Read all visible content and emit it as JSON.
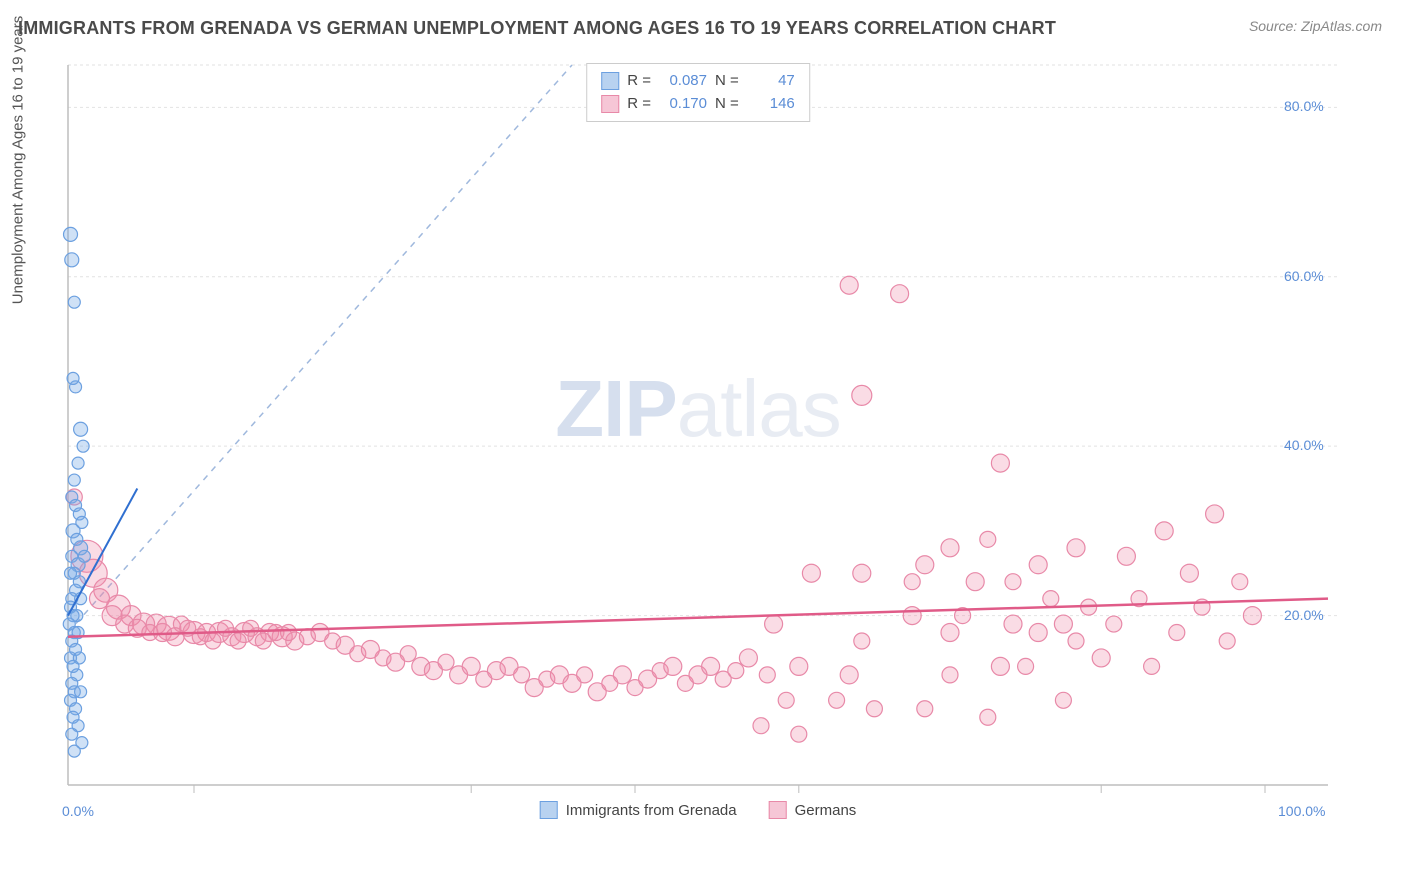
{
  "title": "IMMIGRANTS FROM GRENADA VS GERMAN UNEMPLOYMENT AMONG AGES 16 TO 19 YEARS CORRELATION CHART",
  "source": "Source: ZipAtlas.com",
  "watermark_a": "ZIP",
  "watermark_b": "atlas",
  "chart": {
    "type": "scatter",
    "xlim": [
      0,
      100
    ],
    "ylim": [
      0,
      85
    ],
    "x_ticks_minor": [
      10,
      32,
      45,
      58,
      82,
      95
    ],
    "x_tick_labels": {
      "0": "0.0%",
      "100": "100.0%"
    },
    "y_ticks": [
      20,
      40,
      60,
      80
    ],
    "y_tick_labels": {
      "20": "20.0%",
      "40": "40.0%",
      "60": "60.0%",
      "80": "80.0%"
    },
    "ylabel": "Unemployment Among Ages 16 to 19 years",
    "background_color": "#ffffff",
    "grid_color": "#e2e2e2",
    "axis_line_color": "#bdbdbd",
    "tick_label_color": "#5b8dd6",
    "diagonal_line_color": "#9fb8dd",
    "series": [
      {
        "name": "Immigrants from Grenada",
        "legend_label": "Immigrants from Grenada",
        "color_fill": "rgba(118,168,228,0.35)",
        "color_stroke": "#6ca0e0",
        "swatch_fill": "#b8d2f0",
        "swatch_stroke": "#6ca0e0",
        "R": "0.087",
        "N": "47",
        "trend": {
          "x1": 0,
          "y1": 20,
          "x2": 5.5,
          "y2": 35,
          "color": "#2f6fd0",
          "width": 2
        },
        "points": [
          {
            "x": 0.2,
            "y": 65,
            "r": 7
          },
          {
            "x": 0.3,
            "y": 62,
            "r": 7
          },
          {
            "x": 0.5,
            "y": 57,
            "r": 6
          },
          {
            "x": 0.6,
            "y": 47,
            "r": 6
          },
          {
            "x": 0.4,
            "y": 48,
            "r": 6
          },
          {
            "x": 1.0,
            "y": 42,
            "r": 7
          },
          {
            "x": 1.2,
            "y": 40,
            "r": 6
          },
          {
            "x": 0.8,
            "y": 38,
            "r": 6
          },
          {
            "x": 0.5,
            "y": 36,
            "r": 6
          },
          {
            "x": 0.3,
            "y": 34,
            "r": 6
          },
          {
            "x": 0.6,
            "y": 33,
            "r": 6
          },
          {
            "x": 0.9,
            "y": 32,
            "r": 6
          },
          {
            "x": 1.1,
            "y": 31,
            "r": 6
          },
          {
            "x": 0.4,
            "y": 30,
            "r": 7
          },
          {
            "x": 0.7,
            "y": 29,
            "r": 6
          },
          {
            "x": 1.0,
            "y": 28,
            "r": 7
          },
          {
            "x": 0.3,
            "y": 27,
            "r": 6
          },
          {
            "x": 0.8,
            "y": 26,
            "r": 7
          },
          {
            "x": 1.3,
            "y": 27,
            "r": 6
          },
          {
            "x": 0.5,
            "y": 25,
            "r": 6
          },
          {
            "x": 0.2,
            "y": 25,
            "r": 6
          },
          {
            "x": 0.9,
            "y": 24,
            "r": 6
          },
          {
            "x": 0.6,
            "y": 23,
            "r": 6
          },
          {
            "x": 0.3,
            "y": 22,
            "r": 6
          },
          {
            "x": 1.0,
            "y": 22,
            "r": 6
          },
          {
            "x": 0.2,
            "y": 21,
            "r": 6
          },
          {
            "x": 0.7,
            "y": 20,
            "r": 6
          },
          {
            "x": 0.4,
            "y": 20,
            "r": 6
          },
          {
            "x": 0.1,
            "y": 19,
            "r": 6
          },
          {
            "x": 0.5,
            "y": 18,
            "r": 6
          },
          {
            "x": 0.8,
            "y": 18,
            "r": 6
          },
          {
            "x": 0.3,
            "y": 17,
            "r": 6
          },
          {
            "x": 0.6,
            "y": 16,
            "r": 6
          },
          {
            "x": 0.2,
            "y": 15,
            "r": 6
          },
          {
            "x": 0.9,
            "y": 15,
            "r": 6
          },
          {
            "x": 0.4,
            "y": 14,
            "r": 6
          },
          {
            "x": 0.7,
            "y": 13,
            "r": 6
          },
          {
            "x": 0.3,
            "y": 12,
            "r": 6
          },
          {
            "x": 0.5,
            "y": 11,
            "r": 6
          },
          {
            "x": 1.0,
            "y": 11,
            "r": 6
          },
          {
            "x": 0.2,
            "y": 10,
            "r": 6
          },
          {
            "x": 0.6,
            "y": 9,
            "r": 6
          },
          {
            "x": 0.4,
            "y": 8,
            "r": 6
          },
          {
            "x": 0.8,
            "y": 7,
            "r": 6
          },
          {
            "x": 0.3,
            "y": 6,
            "r": 6
          },
          {
            "x": 1.1,
            "y": 5,
            "r": 6
          },
          {
            "x": 0.5,
            "y": 4,
            "r": 6
          }
        ]
      },
      {
        "name": "Germans",
        "legend_label": "Germans",
        "color_fill": "rgba(240,140,170,0.30)",
        "color_stroke": "#e889a8",
        "swatch_fill": "#f6c6d6",
        "swatch_stroke": "#e889a8",
        "R": "0.170",
        "N": "146",
        "trend": {
          "x1": 0,
          "y1": 17.5,
          "x2": 100,
          "y2": 22,
          "color": "#e05b88",
          "width": 2.5
        },
        "points": [
          {
            "x": 0.5,
            "y": 34,
            "r": 8
          },
          {
            "x": 1.5,
            "y": 27,
            "r": 16
          },
          {
            "x": 2,
            "y": 25,
            "r": 14
          },
          {
            "x": 3,
            "y": 23,
            "r": 12
          },
          {
            "x": 2.5,
            "y": 22,
            "r": 10
          },
          {
            "x": 4,
            "y": 21,
            "r": 12
          },
          {
            "x": 3.5,
            "y": 20,
            "r": 10
          },
          {
            "x": 5,
            "y": 20,
            "r": 10
          },
          {
            "x": 4.5,
            "y": 19,
            "r": 9
          },
          {
            "x": 6,
            "y": 19,
            "r": 11
          },
          {
            "x": 5.5,
            "y": 18.5,
            "r": 9
          },
          {
            "x": 7,
            "y": 19,
            "r": 10
          },
          {
            "x": 6.5,
            "y": 18,
            "r": 8
          },
          {
            "x": 8,
            "y": 18.5,
            "r": 12
          },
          {
            "x": 7.5,
            "y": 18,
            "r": 9
          },
          {
            "x": 9,
            "y": 19,
            "r": 8
          },
          {
            "x": 8.5,
            "y": 17.5,
            "r": 9
          },
          {
            "x": 10,
            "y": 18,
            "r": 11
          },
          {
            "x": 9.5,
            "y": 18.5,
            "r": 8
          },
          {
            "x": 11,
            "y": 18,
            "r": 9
          },
          {
            "x": 10.5,
            "y": 17.5,
            "r": 8
          },
          {
            "x": 12,
            "y": 18,
            "r": 10
          },
          {
            "x": 11.5,
            "y": 17,
            "r": 8
          },
          {
            "x": 13,
            "y": 17.5,
            "r": 9
          },
          {
            "x": 12.5,
            "y": 18.5,
            "r": 8
          },
          {
            "x": 14,
            "y": 18,
            "r": 10
          },
          {
            "x": 13.5,
            "y": 17,
            "r": 8
          },
          {
            "x": 15,
            "y": 17.5,
            "r": 9
          },
          {
            "x": 14.5,
            "y": 18.5,
            "r": 8
          },
          {
            "x": 16,
            "y": 18,
            "r": 9
          },
          {
            "x": 15.5,
            "y": 17,
            "r": 8
          },
          {
            "x": 17,
            "y": 17.5,
            "r": 10
          },
          {
            "x": 16.5,
            "y": 18,
            "r": 8
          },
          {
            "x": 18,
            "y": 17,
            "r": 9
          },
          {
            "x": 17.5,
            "y": 18,
            "r": 8
          },
          {
            "x": 19,
            "y": 17.5,
            "r": 8
          },
          {
            "x": 20,
            "y": 18,
            "r": 9
          },
          {
            "x": 21,
            "y": 17,
            "r": 8
          },
          {
            "x": 22,
            "y": 16.5,
            "r": 9
          },
          {
            "x": 23,
            "y": 15.5,
            "r": 8
          },
          {
            "x": 24,
            "y": 16,
            "r": 9
          },
          {
            "x": 25,
            "y": 15,
            "r": 8
          },
          {
            "x": 26,
            "y": 14.5,
            "r": 9
          },
          {
            "x": 27,
            "y": 15.5,
            "r": 8
          },
          {
            "x": 28,
            "y": 14,
            "r": 9
          },
          {
            "x": 29,
            "y": 13.5,
            "r": 9
          },
          {
            "x": 30,
            "y": 14.5,
            "r": 8
          },
          {
            "x": 31,
            "y": 13,
            "r": 9
          },
          {
            "x": 32,
            "y": 14,
            "r": 9
          },
          {
            "x": 33,
            "y": 12.5,
            "r": 8
          },
          {
            "x": 34,
            "y": 13.5,
            "r": 9
          },
          {
            "x": 35,
            "y": 14,
            "r": 9
          },
          {
            "x": 36,
            "y": 13,
            "r": 8
          },
          {
            "x": 37,
            "y": 11.5,
            "r": 9
          },
          {
            "x": 38,
            "y": 12.5,
            "r": 8
          },
          {
            "x": 39,
            "y": 13,
            "r": 9
          },
          {
            "x": 40,
            "y": 12,
            "r": 9
          },
          {
            "x": 41,
            "y": 13,
            "r": 8
          },
          {
            "x": 42,
            "y": 11,
            "r": 9
          },
          {
            "x": 43,
            "y": 12,
            "r": 8
          },
          {
            "x": 44,
            "y": 13,
            "r": 9
          },
          {
            "x": 45,
            "y": 11.5,
            "r": 8
          },
          {
            "x": 46,
            "y": 12.5,
            "r": 9
          },
          {
            "x": 47,
            "y": 13.5,
            "r": 8
          },
          {
            "x": 48,
            "y": 14,
            "r": 9
          },
          {
            "x": 49,
            "y": 12,
            "r": 8
          },
          {
            "x": 50,
            "y": 13,
            "r": 9
          },
          {
            "x": 51,
            "y": 14,
            "r": 9
          },
          {
            "x": 52,
            "y": 12.5,
            "r": 8
          },
          {
            "x": 53,
            "y": 13.5,
            "r": 8
          },
          {
            "x": 54,
            "y": 15,
            "r": 9
          },
          {
            "x": 55,
            "y": 7,
            "r": 8
          },
          {
            "x": 55.5,
            "y": 13,
            "r": 8
          },
          {
            "x": 56,
            "y": 19,
            "r": 9
          },
          {
            "x": 57,
            "y": 10,
            "r": 8
          },
          {
            "x": 58,
            "y": 6,
            "r": 8
          },
          {
            "x": 58,
            "y": 14,
            "r": 9
          },
          {
            "x": 59,
            "y": 25,
            "r": 9
          },
          {
            "x": 61,
            "y": 10,
            "r": 8
          },
          {
            "x": 62,
            "y": 13,
            "r": 9
          },
          {
            "x": 62,
            "y": 59,
            "r": 9
          },
          {
            "x": 63,
            "y": 17,
            "r": 8
          },
          {
            "x": 63,
            "y": 25,
            "r": 9
          },
          {
            "x": 63,
            "y": 46,
            "r": 10
          },
          {
            "x": 64,
            "y": 9,
            "r": 8
          },
          {
            "x": 66,
            "y": 58,
            "r": 9
          },
          {
            "x": 67,
            "y": 20,
            "r": 9
          },
          {
            "x": 67,
            "y": 24,
            "r": 8
          },
          {
            "x": 68,
            "y": 9,
            "r": 8
          },
          {
            "x": 68,
            "y": 26,
            "r": 9
          },
          {
            "x": 70,
            "y": 13,
            "r": 8
          },
          {
            "x": 70,
            "y": 18,
            "r": 9
          },
          {
            "x": 70,
            "y": 28,
            "r": 9
          },
          {
            "x": 71,
            "y": 20,
            "r": 8
          },
          {
            "x": 72,
            "y": 24,
            "r": 9
          },
          {
            "x": 73,
            "y": 29,
            "r": 8
          },
          {
            "x": 73,
            "y": 8,
            "r": 8
          },
          {
            "x": 74,
            "y": 14,
            "r": 9
          },
          {
            "x": 74,
            "y": 38,
            "r": 9
          },
          {
            "x": 75,
            "y": 19,
            "r": 9
          },
          {
            "x": 75,
            "y": 24,
            "r": 8
          },
          {
            "x": 76,
            "y": 14,
            "r": 8
          },
          {
            "x": 77,
            "y": 18,
            "r": 9
          },
          {
            "x": 77,
            "y": 26,
            "r": 9
          },
          {
            "x": 78,
            "y": 22,
            "r": 8
          },
          {
            "x": 79,
            "y": 10,
            "r": 8
          },
          {
            "x": 79,
            "y": 19,
            "r": 9
          },
          {
            "x": 80,
            "y": 17,
            "r": 8
          },
          {
            "x": 80,
            "y": 28,
            "r": 9
          },
          {
            "x": 81,
            "y": 21,
            "r": 8
          },
          {
            "x": 82,
            "y": 15,
            "r": 9
          },
          {
            "x": 83,
            "y": 19,
            "r": 8
          },
          {
            "x": 84,
            "y": 27,
            "r": 9
          },
          {
            "x": 85,
            "y": 22,
            "r": 8
          },
          {
            "x": 86,
            "y": 14,
            "r": 8
          },
          {
            "x": 87,
            "y": 30,
            "r": 9
          },
          {
            "x": 88,
            "y": 18,
            "r": 8
          },
          {
            "x": 89,
            "y": 25,
            "r": 9
          },
          {
            "x": 90,
            "y": 21,
            "r": 8
          },
          {
            "x": 91,
            "y": 32,
            "r": 9
          },
          {
            "x": 92,
            "y": 17,
            "r": 8
          },
          {
            "x": 93,
            "y": 24,
            "r": 8
          },
          {
            "x": 94,
            "y": 20,
            "r": 9
          }
        ]
      }
    ]
  },
  "legend_stats": {
    "R_label": "R =",
    "N_label": "N ="
  },
  "bottom_legend": {
    "items": [
      "Immigrants from Grenada",
      "Germans"
    ]
  }
}
